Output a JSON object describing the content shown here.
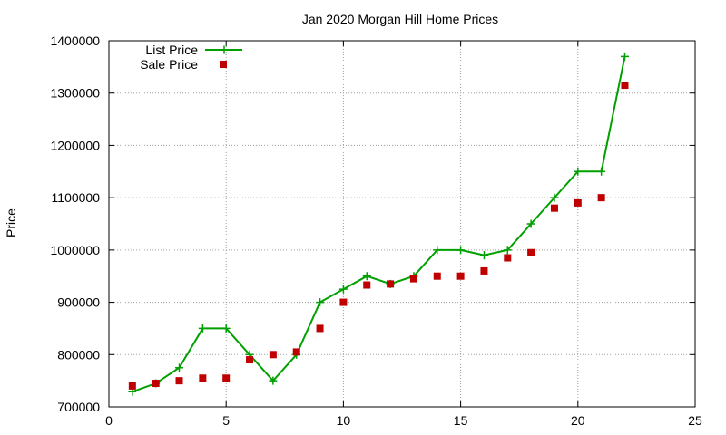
{
  "chart_data": {
    "type": "line",
    "title": "Jan 2020 Morgan Hill Home Prices",
    "xlabel": "",
    "ylabel": "Price",
    "xlim": [
      0,
      25
    ],
    "ylim": [
      700000,
      1400000
    ],
    "xticks": [
      0,
      5,
      10,
      15,
      20,
      25
    ],
    "yticks": [
      700000,
      800000,
      900000,
      1000000,
      1100000,
      1200000,
      1300000,
      1400000
    ],
    "grid": true,
    "legend": "top-left",
    "series": [
      {
        "name": "List Price",
        "style": "line-with-plus-markers",
        "color": "#00a000",
        "x": [
          1,
          2,
          3,
          4,
          5,
          6,
          7,
          8,
          9,
          10,
          11,
          12,
          13,
          14,
          15,
          16,
          17,
          18,
          19,
          20,
          21,
          22
        ],
        "values": [
          729000,
          745000,
          775000,
          850000,
          850000,
          800000,
          750000,
          800000,
          900000,
          925000,
          950000,
          935000,
          950000,
          1000000,
          1000000,
          990000,
          1000000,
          1050000,
          1100000,
          1150000,
          1150000,
          1370000
        ]
      },
      {
        "name": "Sale Price",
        "style": "square-markers",
        "color": "#c00000",
        "x": [
          1,
          2,
          3,
          4,
          5,
          6,
          7,
          8,
          9,
          10,
          11,
          12,
          13,
          14,
          15,
          16,
          17,
          18,
          19,
          20,
          21,
          22
        ],
        "values": [
          740000,
          745000,
          750000,
          755000,
          755000,
          790000,
          800000,
          805000,
          850000,
          900000,
          933000,
          935000,
          945000,
          950000,
          950000,
          960000,
          985000,
          995000,
          1080000,
          1090000,
          1100000,
          1315000
        ]
      }
    ]
  }
}
